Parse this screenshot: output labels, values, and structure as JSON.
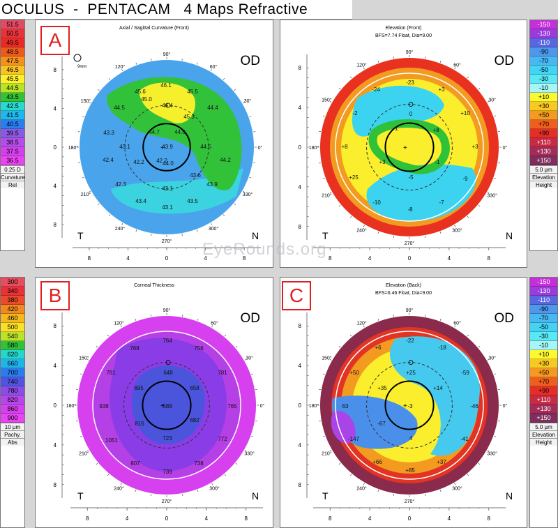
{
  "title": "OCULUS  -  PENTACAM   4 Maps Refractive",
  "watermark": "EyeRounds.org",
  "scales": {
    "curvature": {
      "values": [
        "51.5",
        "50.5",
        "49.5",
        "48.5",
        "47.5",
        "46.5",
        "45.5",
        "44.5",
        "43.5",
        "42.5",
        "41.5",
        "40.5",
        "39.5",
        "38.5",
        "37.5",
        "36.5"
      ],
      "colors": [
        "#e14a62",
        "#e8333a",
        "#ea2b24",
        "#ee5a1e",
        "#f3921c",
        "#f7c424",
        "#fbf12c",
        "#b8e426",
        "#31c236",
        "#27d9d1",
        "#1fb7ee",
        "#2a7ef0",
        "#8d59e4",
        "#b34fe8",
        "#d441ec",
        "#e845f0"
      ],
      "footer": [
        "0.25 D",
        "Curvature",
        "Rel"
      ]
    },
    "elevation_front": {
      "values": [
        "-150",
        "-130",
        "-110",
        "-90",
        "-70",
        "-50",
        "-30",
        "-10",
        "+10",
        "+30",
        "+50",
        "+70",
        "+90",
        "+110",
        "+130",
        "+150"
      ],
      "colors": [
        "#c32fd8",
        "#9a3cdb",
        "#5866e0",
        "#4d97ec",
        "#48b8f2",
        "#43d3f5",
        "#5ae8f5",
        "#a7f5f8",
        "#fdf92f",
        "#f9c823",
        "#f59a20",
        "#ef5e1f",
        "#e52e26",
        "#c62a44",
        "#a22b58",
        "#7f2d5c"
      ],
      "footer": [
        "5.0 µm",
        "Elevation",
        "Height"
      ]
    },
    "thickness": {
      "values": [
        "300",
        "340",
        "380",
        "420",
        "460",
        "500",
        "540",
        "580",
        "620",
        "660",
        "700",
        "740",
        "780",
        "820",
        "860",
        "900"
      ],
      "colors": [
        "#e64d5f",
        "#e93138",
        "#ea4b28",
        "#f08a20",
        "#f6b81f",
        "#f9e125",
        "#bde22a",
        "#31c23a",
        "#25d6cc",
        "#20b4ec",
        "#2b7cef",
        "#5154e0",
        "#8c4de4",
        "#b548ea",
        "#d641ef",
        "#e844f3"
      ],
      "footer": [
        "10 µm",
        "Pachy.",
        "Abs"
      ]
    },
    "elevation_back": {
      "values": [
        "-150",
        "-130",
        "-110",
        "-90",
        "-70",
        "-50",
        "-30",
        "-10",
        "+10",
        "+30",
        "+50",
        "+70",
        "+90",
        "+110",
        "+130",
        "+150"
      ],
      "colors": [
        "#c32fd8",
        "#9a3cdb",
        "#5866e0",
        "#4d97ec",
        "#48b8f2",
        "#43d3f5",
        "#5ae8f5",
        "#a7f5f8",
        "#fdf92f",
        "#f9c823",
        "#f59a20",
        "#ef5e1f",
        "#e52e26",
        "#c62a44",
        "#a22b58",
        "#7f2d5c"
      ],
      "footer": [
        "5.0 µm",
        "Elevation",
        "Height"
      ]
    }
  },
  "panels": {
    "a": {
      "badge": "A",
      "title": "Axial / Sagittal Curvature (Front)",
      "subtitle": "",
      "eye": "OD",
      "zoom": "9mm",
      "values": [
        "46.1",
        "45.6",
        "45.5",
        "45.0",
        "44.5",
        "46.4",
        "45.3",
        "44.4",
        "43.3",
        "44.7",
        "44.6",
        "43.1",
        "43.9",
        "44.5",
        "44.2",
        "42.4",
        "42.2",
        "44.0",
        "43.6",
        "42.2",
        "42.3",
        "43.1",
        "43.9",
        "43.4",
        "43.5",
        "43.1"
      ],
      "colors": {
        "blue": "#4aa4ec",
        "cyan": "#3bd3e0",
        "green": "#32c23a",
        "yellow": "#f6f02c",
        "lime": "#b7e22a"
      }
    },
    "b": {
      "badge": "B",
      "title": "Corneal Thickness",
      "subtitle": "",
      "eye": "OD",
      "values": [
        "768",
        "764",
        "756",
        "781",
        "781",
        "648",
        "695",
        "658",
        "938",
        "588",
        "765",
        "816",
        "682",
        "723",
        "772",
        "1051",
        "807",
        "738",
        "739"
      ],
      "colors": {
        "violet": "#8a3ce6",
        "purple": "#b440e6",
        "blue": "#4a55dc",
        "magenta": "#d640ee"
      }
    },
    "c": {
      "badge": "C",
      "title": "Elevation (Back)",
      "subtitle": "BFS=6.46 Float, Dia=9.00",
      "eye": "OD",
      "values": [
        "+6",
        "-22",
        "-18",
        "+50",
        "+25",
        "-59",
        "+35",
        "+14",
        "63",
        "-3",
        "-46",
        "-147",
        "-67",
        "4",
        "-41",
        "+66",
        "+37",
        "+85"
      ],
      "colors": {
        "red": "#e23424",
        "orange": "#f39a20",
        "yellow": "#fbee2c",
        "cyan": "#46c9ee",
        "blue": "#4a90ea",
        "green": "#2fc238",
        "maroon": "#8a2a4c"
      }
    },
    "d": {
      "title": "Elevation (Front)",
      "subtitle": "BFS=7.74 Float, Dia=9.00",
      "eye": "OD",
      "values": [
        "-24",
        "-23",
        "+3",
        "-2",
        "0",
        "+10",
        "-1",
        "+8",
        "+8",
        "+3",
        "+3",
        "-5",
        "-1",
        "+25",
        "-9",
        "-10",
        "-7",
        "-8"
      ],
      "colors": {
        "red": "#e8321f",
        "orange": "#f39a20",
        "yellow": "#fbee2c",
        "cyan": "#3bd3f0",
        "green": "#2fc238"
      }
    }
  },
  "axis": {
    "angles": [
      "90°",
      "60°",
      "30°",
      "0°",
      "330°",
      "300°",
      "270°",
      "240°",
      "210°",
      "180°",
      "150°",
      "120°"
    ],
    "ticks_x": [
      "8",
      "4",
      "0",
      "4",
      "8"
    ],
    "ticks_y": [
      "8",
      "4",
      "0",
      "4",
      "8"
    ],
    "temporal": "T",
    "nasal": "N"
  }
}
